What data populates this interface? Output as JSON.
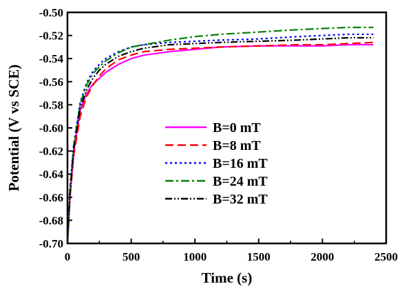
{
  "chart_data": {
    "type": "line",
    "xlabel": "Time (s)",
    "ylabel": "Potential (V vs SCE)",
    "xlim": [
      0,
      2500
    ],
    "ylim": [
      -0.7,
      -0.5
    ],
    "xticks": [
      0,
      500,
      1000,
      1500,
      2000,
      2500
    ],
    "xtick_labels": [
      "0",
      "500",
      "1000",
      "1500",
      "2000",
      "2500"
    ],
    "yticks": [
      -0.7,
      -0.68,
      -0.66,
      -0.64,
      -0.62,
      -0.6,
      -0.58,
      -0.56,
      -0.54,
      -0.52,
      -0.5
    ],
    "ytick_labels": [
      "-0.70",
      "-0.68",
      "-0.66",
      "-0.64",
      "-0.62",
      "-0.60",
      "-0.58",
      "-0.56",
      "-0.54",
      "-0.52",
      "-0.50"
    ],
    "grid": false,
    "legend_position": "center-right",
    "series": [
      {
        "name": "B=0 mT",
        "color": "#ff00ff",
        "dash": "solid",
        "x": [
          0,
          20,
          50,
          100,
          150,
          200,
          250,
          300,
          400,
          500,
          600,
          800,
          1000,
          1200,
          1500,
          1800,
          2000,
          2200,
          2400
        ],
        "y": [
          -0.7,
          -0.66,
          -0.62,
          -0.585,
          -0.57,
          -0.562,
          -0.557,
          -0.552,
          -0.545,
          -0.54,
          -0.537,
          -0.534,
          -0.532,
          -0.53,
          -0.529,
          -0.529,
          -0.529,
          -0.528,
          -0.528
        ]
      },
      {
        "name": "B=8 mT",
        "color": "#ff0000",
        "dash": "dashed",
        "x": [
          0,
          20,
          50,
          100,
          150,
          200,
          250,
          300,
          400,
          500,
          600,
          800,
          1000,
          1200,
          1500,
          1800,
          2000,
          2200,
          2400
        ],
        "y": [
          -0.7,
          -0.66,
          -0.623,
          -0.59,
          -0.573,
          -0.563,
          -0.555,
          -0.549,
          -0.541,
          -0.537,
          -0.534,
          -0.532,
          -0.531,
          -0.53,
          -0.529,
          -0.528,
          -0.528,
          -0.527,
          -0.526
        ]
      },
      {
        "name": "B=16 mT",
        "color": "#0000ff",
        "dash": "dotted",
        "x": [
          0,
          20,
          50,
          100,
          150,
          200,
          250,
          300,
          400,
          500,
          600,
          800,
          1000,
          1200,
          1500,
          1800,
          2000,
          2200,
          2400
        ],
        "y": [
          -0.7,
          -0.652,
          -0.613,
          -0.578,
          -0.561,
          -0.551,
          -0.545,
          -0.54,
          -0.534,
          -0.53,
          -0.528,
          -0.526,
          -0.525,
          -0.524,
          -0.523,
          -0.521,
          -0.52,
          -0.519,
          -0.519
        ]
      },
      {
        "name": "B=24 mT",
        "color": "#008000",
        "dash": "dashdot",
        "x": [
          0,
          20,
          50,
          100,
          150,
          200,
          250,
          300,
          400,
          500,
          600,
          800,
          1000,
          1200,
          1500,
          1800,
          2000,
          2200,
          2400
        ],
        "y": [
          -0.7,
          -0.655,
          -0.615,
          -0.579,
          -0.563,
          -0.553,
          -0.547,
          -0.542,
          -0.535,
          -0.53,
          -0.528,
          -0.524,
          -0.521,
          -0.519,
          -0.517,
          -0.515,
          -0.514,
          -0.513,
          -0.513
        ]
      },
      {
        "name": "B=32 mT",
        "color": "#000000",
        "dash": "dashdotdot",
        "x": [
          0,
          20,
          50,
          100,
          150,
          200,
          250,
          300,
          400,
          500,
          600,
          800,
          1000,
          1200,
          1500,
          1800,
          2000,
          2200,
          2400
        ],
        "y": [
          -0.7,
          -0.655,
          -0.617,
          -0.583,
          -0.567,
          -0.557,
          -0.55,
          -0.545,
          -0.538,
          -0.534,
          -0.531,
          -0.528,
          -0.527,
          -0.526,
          -0.525,
          -0.524,
          -0.523,
          -0.522,
          -0.522
        ]
      }
    ]
  }
}
